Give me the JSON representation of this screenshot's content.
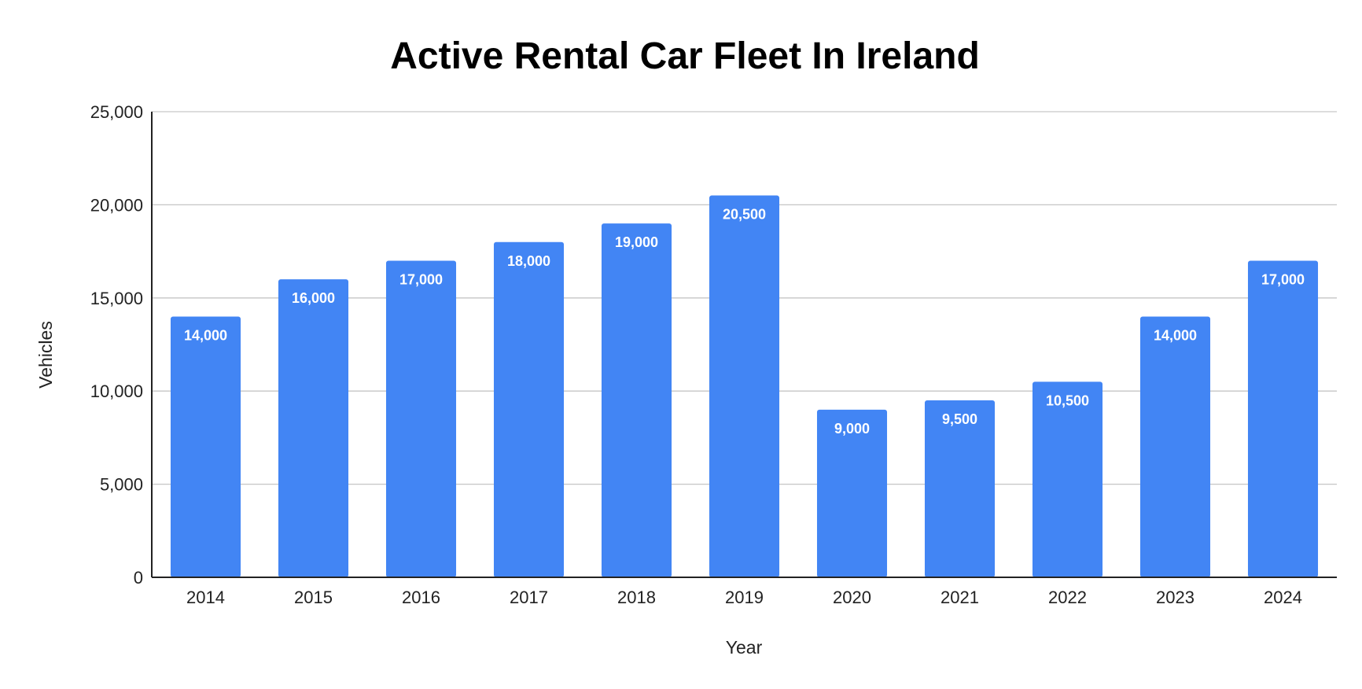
{
  "chart_data": {
    "type": "bar",
    "title": "Active Rental Car Fleet In Ireland",
    "xlabel": "Year",
    "ylabel": "Vehicles",
    "categories": [
      "2014",
      "2015",
      "2016",
      "2017",
      "2018",
      "2019",
      "2020",
      "2021",
      "2022",
      "2023",
      "2024"
    ],
    "values": [
      14000,
      16000,
      17000,
      18000,
      19000,
      20500,
      9000,
      9500,
      10500,
      14000,
      17000
    ],
    "data_labels": [
      "14,000",
      "16,000",
      "17,000",
      "18,000",
      "19,000",
      "20,500",
      "9,000",
      "9,500",
      "10,500",
      "14,000",
      "17,000"
    ],
    "ylim": [
      0,
      25000
    ],
    "yticks": [
      0,
      5000,
      10000,
      15000,
      20000,
      25000
    ],
    "ytick_labels": [
      "0",
      "5,000",
      "10,000",
      "15,000",
      "20,000",
      "25,000"
    ],
    "bar_color": "#4285f4",
    "grid": true,
    "legend": "none"
  }
}
